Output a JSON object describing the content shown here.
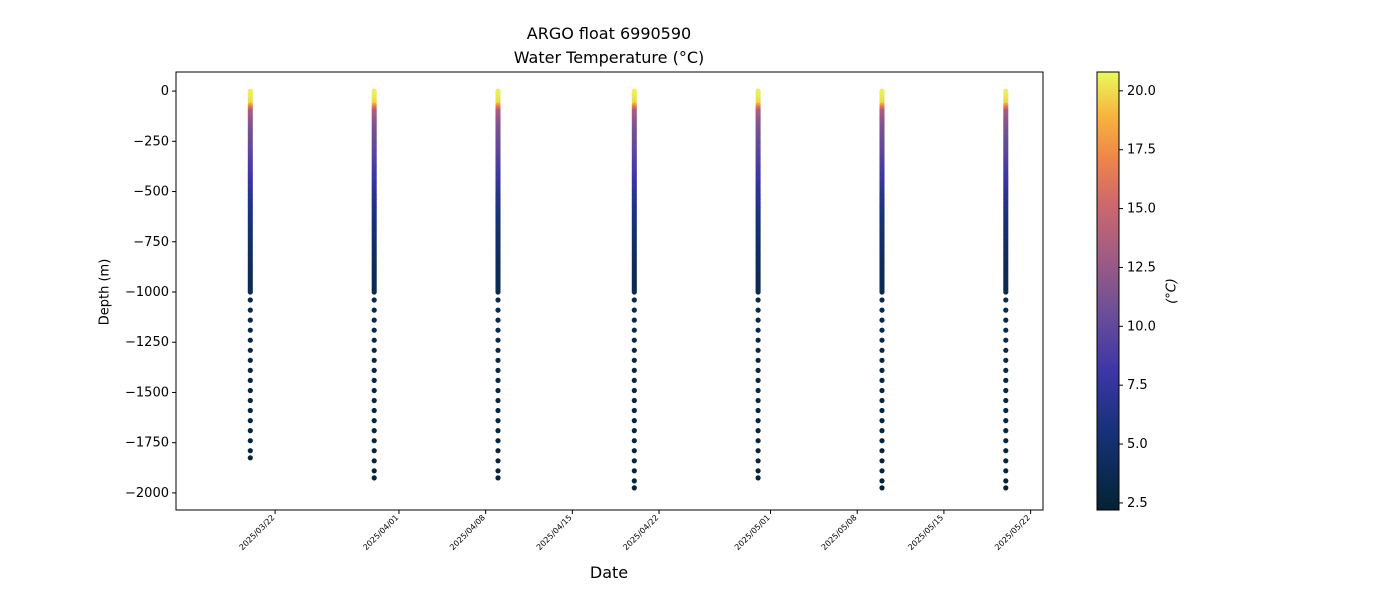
{
  "chart_data": {
    "type": "scatter",
    "title": "ARGO float 6990590",
    "subtitle": "Water Temperature (°C)",
    "xlabel": "Date",
    "ylabel": "Depth (m)",
    "colorbar_label": "(°C)",
    "colormap": "thermal",
    "color_range": [
      2.2,
      20.8
    ],
    "colorbar_ticks": [
      "2.5",
      "5.0",
      "7.5",
      "10.0",
      "12.5",
      "15.0",
      "17.5",
      "20.0"
    ],
    "ylim": [
      -2085,
      95
    ],
    "y_ticks": [
      0,
      -250,
      -500,
      -750,
      -1000,
      -1250,
      -1500,
      -1750,
      -2000
    ],
    "y_tick_labels": [
      "0",
      "−250",
      "−500",
      "−750",
      "−1000",
      "−1250",
      "−1500",
      "−1750",
      "−2000"
    ],
    "xlim": [
      "2025-03-14",
      "2025-05-23"
    ],
    "x_ticks": [
      "2025-03-22",
      "2025-04-01",
      "2025-04-08",
      "2025-04-15",
      "2025-04-22",
      "2025-05-01",
      "2025-05-08",
      "2025-05-15",
      "2025-05-22"
    ],
    "x_tick_labels": [
      "2025/03/22",
      "2025/04/01",
      "2025/04/08",
      "2025/04/15",
      "2025/04/22",
      "2025/05/01",
      "2025/05/08",
      "2025/05/15",
      "2025/05/22"
    ],
    "grid": false,
    "profiles": [
      {
        "date": "2025-03-20",
        "max_depth": -1825
      },
      {
        "date": "2025-03-30",
        "max_depth": -1925
      },
      {
        "date": "2025-04-09",
        "max_depth": -1925
      },
      {
        "date": "2025-04-20",
        "max_depth": -1975
      },
      {
        "date": "2025-04-30",
        "max_depth": -1925
      },
      {
        "date": "2025-05-10",
        "max_depth": -1975
      },
      {
        "date": "2025-05-20",
        "max_depth": -1975
      }
    ],
    "temperature_profile": {
      "depth": [
        0,
        -30,
        -60,
        -100,
        -150,
        -200,
        -300,
        -400,
        -500,
        -600,
        -700,
        -800,
        -900,
        -1000,
        -1200,
        -1500,
        -2000
      ],
      "temp": [
        20.6,
        20.4,
        19.8,
        13.5,
        12.0,
        11.0,
        9.8,
        8.5,
        7.0,
        6.0,
        5.2,
        4.5,
        4.0,
        3.7,
        3.2,
        2.8,
        2.5
      ]
    }
  }
}
